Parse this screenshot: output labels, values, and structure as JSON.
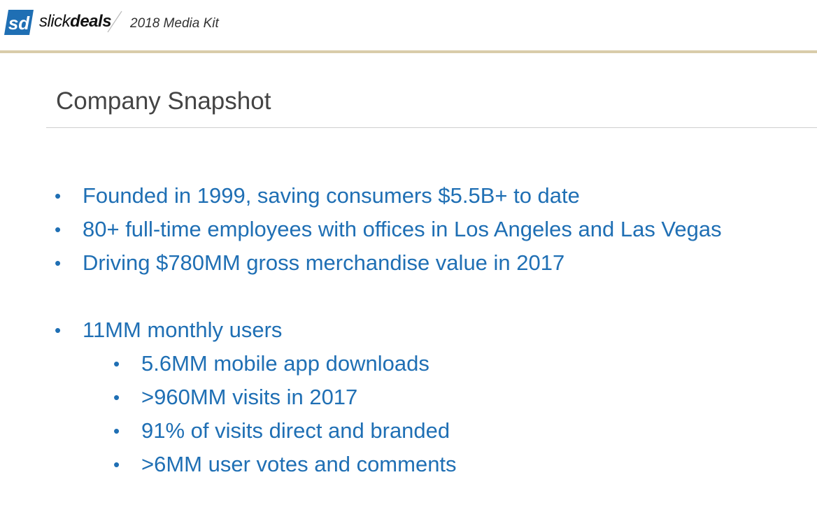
{
  "header": {
    "brand_thin": "slick",
    "brand_bold": "deals",
    "kit_label": "2018 Media Kit",
    "logo_icon": "sd-logo-icon",
    "accent_color": "#1f6fb4",
    "rule_color": "#d9ccaa"
  },
  "main": {
    "title": "Company Snapshot",
    "group1": [
      "Founded in 1999, saving consumers $5.5B+ to date",
      "80+ full-time employees with offices in Los Angeles and Las Vegas",
      "Driving $780MM gross merchandise value in 2017"
    ],
    "group2_lead": "11MM monthly users",
    "group2_sub": [
      "5.6MM mobile app downloads",
      ">960MM visits in 2017",
      "91% of visits direct and branded",
      ">6MM user votes and comments"
    ]
  }
}
